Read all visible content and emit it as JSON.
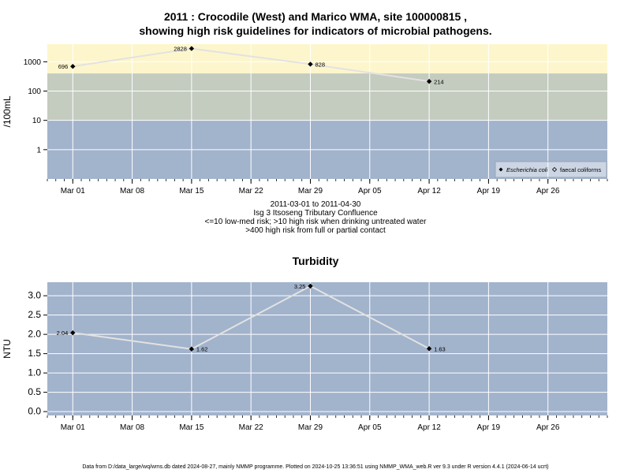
{
  "chart_data": [
    {
      "type": "line",
      "title": "2011 : Crocodile (West) and Marico WMA, site 100000815 ,",
      "subtitle": "showing high risk guidelines for indicators of microbial pathogens.",
      "ylabel": "/100mL",
      "yscale": "log",
      "yticks": [
        "1",
        "10",
        "100",
        "1000"
      ],
      "ytick_values": [
        1,
        10,
        100,
        1000
      ],
      "xticks": [
        "Mar 01",
        "Mar 08",
        "Mar 15",
        "Mar 22",
        "Mar 29",
        "Apr 05",
        "Apr 12",
        "Apr 19",
        "Apr 26"
      ],
      "xtick_dates": [
        "2011-03-01",
        "2011-03-08",
        "2011-03-15",
        "2011-03-22",
        "2011-03-29",
        "2011-04-05",
        "2011-04-12",
        "2011-04-19",
        "2011-04-26"
      ],
      "xlim": [
        "2011-02-26",
        "2011-05-03"
      ],
      "bands": [
        {
          "from": 400,
          "to": 4000,
          "color": "#fdf6cc"
        },
        {
          "from": 10,
          "to": 400,
          "color": "#c4cbbf"
        },
        {
          "from": 0.1,
          "to": 10,
          "color": "#a2b3cc"
        }
      ],
      "grid": true,
      "series": [
        {
          "name": "Escherichia coli",
          "color": "#e2e2e2",
          "x": [
            "2011-03-01",
            "2011-03-15",
            "2011-03-29",
            "2011-04-12"
          ],
          "y": [
            696,
            2828,
            828,
            214
          ],
          "labels": [
            "696",
            "2828",
            "828",
            "214"
          ]
        }
      ],
      "legend": {
        "position": "bottom-right",
        "entries": [
          "Escherichia coli",
          "faecal coliforms"
        ]
      },
      "notes": [
        "2011-03-01 to 2011-04-30",
        "Isg 3 Itsoseng Tributary Confluence",
        "<=10 low-med risk; >10 high risk when drinking untreated water",
        ">400 high risk from full or partial contact"
      ]
    },
    {
      "type": "line",
      "title": "Turbidity",
      "ylabel": "NTU",
      "yticks": [
        "0.0",
        "0.5",
        "1.0",
        "1.5",
        "2.0",
        "2.5",
        "3.0"
      ],
      "ytick_values": [
        0,
        0.5,
        1,
        1.5,
        2,
        2.5,
        3
      ],
      "ylim": [
        -0.1,
        3.35
      ],
      "xticks": [
        "Mar 01",
        "Mar 08",
        "Mar 15",
        "Mar 22",
        "Mar 29",
        "Apr 05",
        "Apr 12",
        "Apr 19",
        "Apr 26"
      ],
      "xtick_dates": [
        "2011-03-01",
        "2011-03-08",
        "2011-03-15",
        "2011-03-22",
        "2011-03-29",
        "2011-04-05",
        "2011-04-12",
        "2011-04-19",
        "2011-04-26"
      ],
      "xlim": [
        "2011-02-26",
        "2011-05-03"
      ],
      "background": "#a2b3cc",
      "grid": true,
      "series": [
        {
          "color": "#e2e2e2",
          "x": [
            "2011-03-01",
            "2011-03-15",
            "2011-03-29",
            "2011-04-12"
          ],
          "y": [
            2.04,
            1.62,
            3.25,
            1.63
          ],
          "labels": [
            "2.04",
            "1.62",
            "3.25",
            "1.63"
          ]
        }
      ]
    }
  ],
  "footer": "Data from D:/data_large/wq/wms.db dated 2024-08-27, mainly NMMP programme. Plotted on 2024-10-25 13:36:51 using NMMP_WMA_web.R ver 9.3 under R version 4.4.1 (2024-06-14 ucrt)"
}
